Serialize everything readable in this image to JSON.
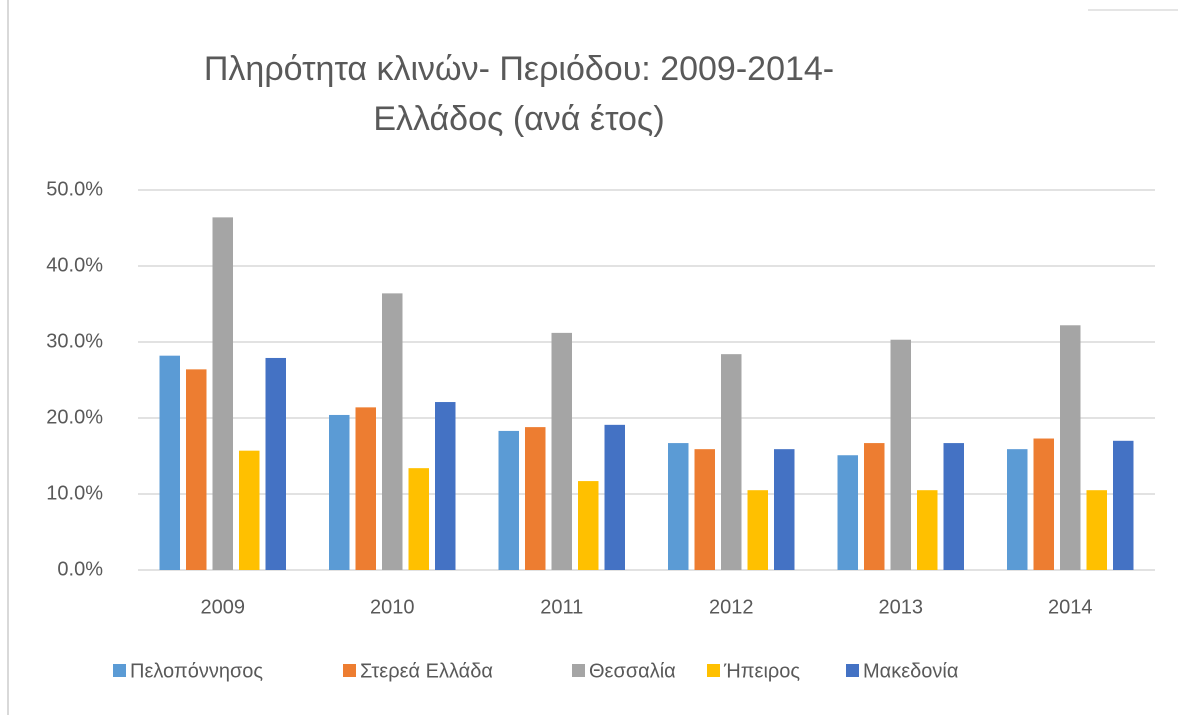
{
  "chart_data": {
    "type": "bar",
    "title": "Πληρότητα κλινών- Περιόδου: 2009-2014- Ελλάδος (ανά έτος)",
    "categories": [
      "2009",
      "2010",
      "2011",
      "2012",
      "2013",
      "2014"
    ],
    "series": [
      {
        "name": "Πελοπόννησος",
        "color": "#5b9bd5",
        "values": [
          28.2,
          20.4,
          18.3,
          16.7,
          15.1,
          15.9
        ]
      },
      {
        "name": "Στερεά Ελλάδα",
        "color": "#ed7d31",
        "values": [
          26.4,
          21.4,
          18.8,
          15.9,
          16.7,
          17.3
        ]
      },
      {
        "name": "Θεσσαλία",
        "color": "#a5a5a5",
        "values": [
          46.4,
          36.4,
          31.2,
          28.4,
          30.3,
          32.2
        ]
      },
      {
        "name": "Ήπειρος",
        "color": "#ffc000",
        "values": [
          15.7,
          13.4,
          11.7,
          10.5,
          10.5,
          10.5
        ]
      },
      {
        "name": "Μακεδονία",
        "color": "#4472c4",
        "values": [
          27.9,
          22.1,
          19.1,
          15.9,
          16.7,
          17.0
        ]
      }
    ],
    "ylim": [
      0,
      50
    ],
    "yticks": [
      {
        "value": 0,
        "label": "0.0%"
      },
      {
        "value": 10,
        "label": "10.0%"
      },
      {
        "value": 20,
        "label": "20.0%"
      },
      {
        "value": 30,
        "label": "30.0%"
      },
      {
        "value": 40,
        "label": "40.0%"
      },
      {
        "value": 50,
        "label": "50.0%"
      }
    ],
    "grid": true,
    "legend": "bottom"
  }
}
